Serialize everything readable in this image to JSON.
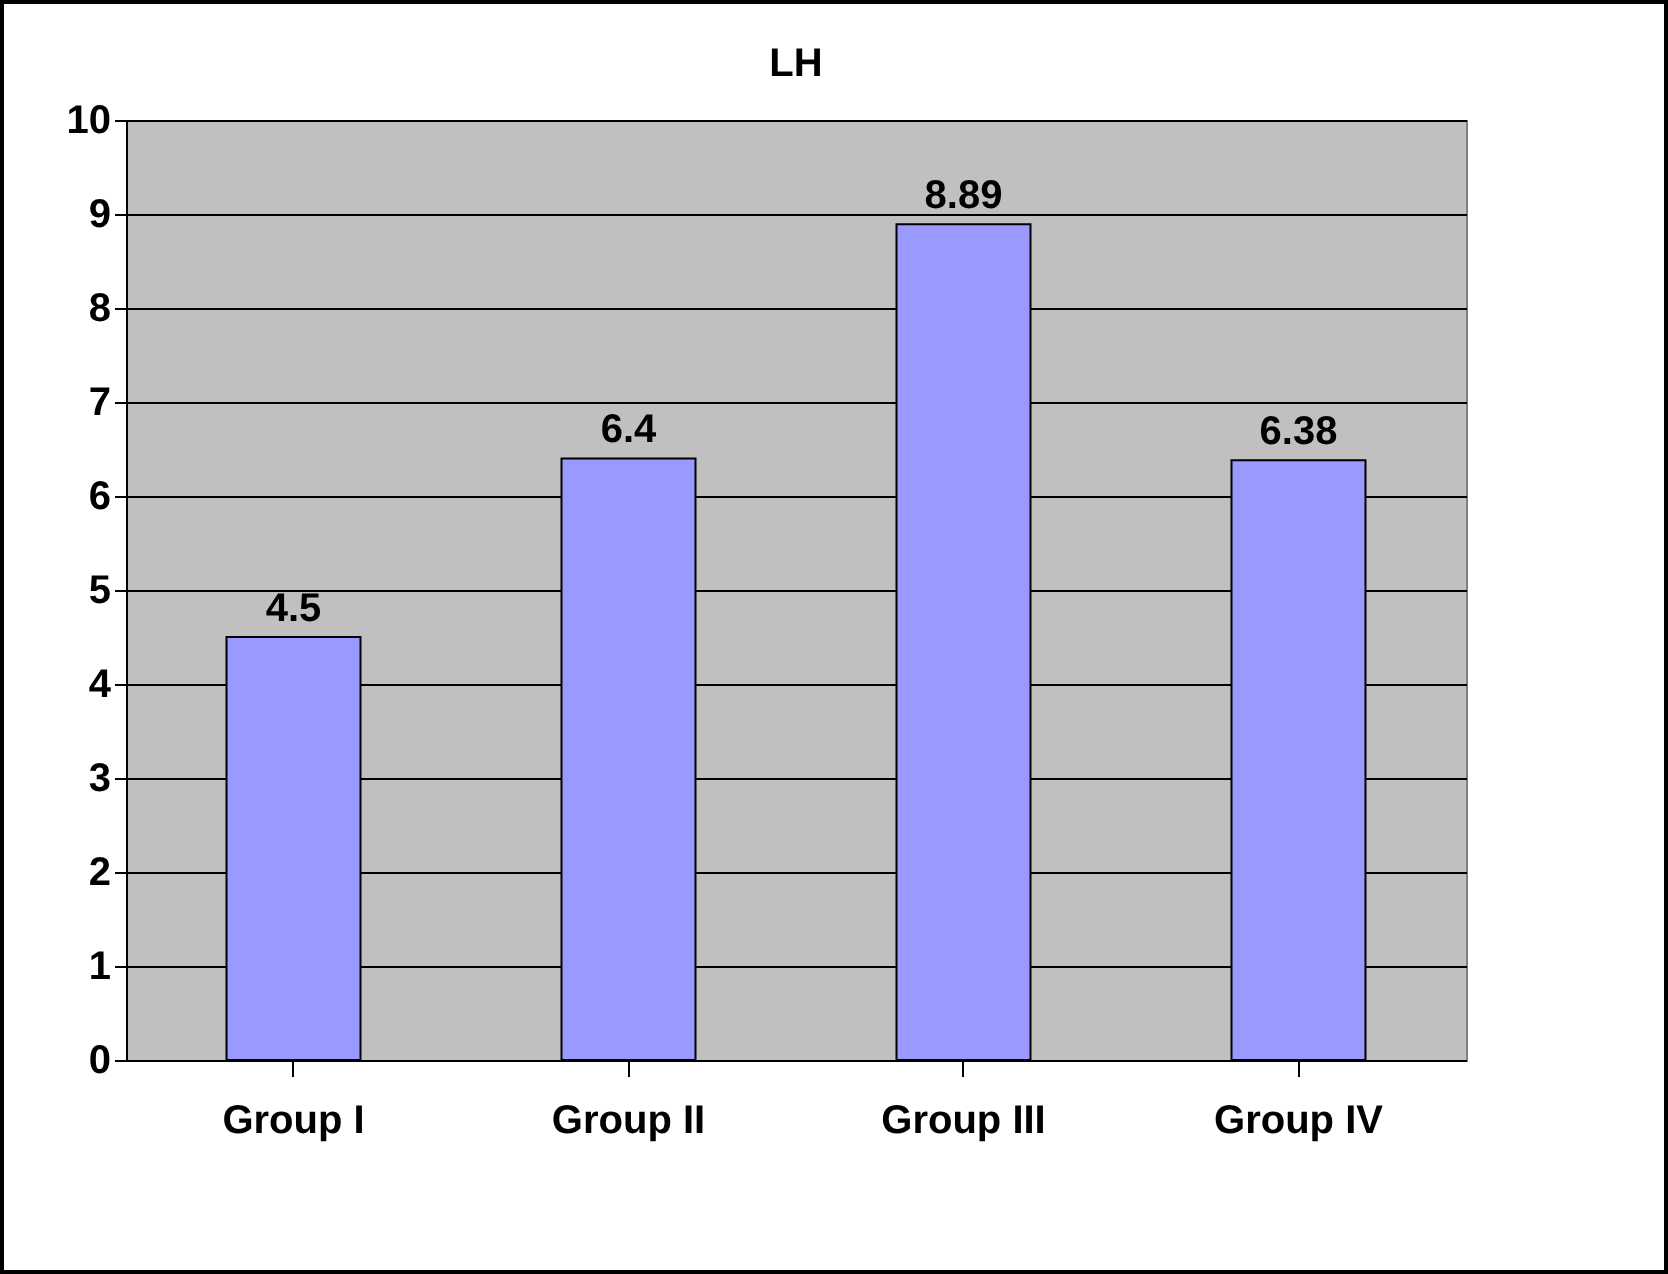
{
  "chart_data": {
    "type": "bar",
    "title": "LH",
    "categories": [
      "Group I",
      "Group II",
      "Group III",
      "Group IV"
    ],
    "values": [
      4.5,
      6.4,
      8.89,
      6.38
    ],
    "color": "#9999ff",
    "ylim": [
      0,
      10
    ],
    "yticks": [
      0,
      1,
      2,
      3,
      4,
      5,
      6,
      7,
      8,
      9,
      10
    ],
    "grid": "y",
    "data_labels": true
  }
}
